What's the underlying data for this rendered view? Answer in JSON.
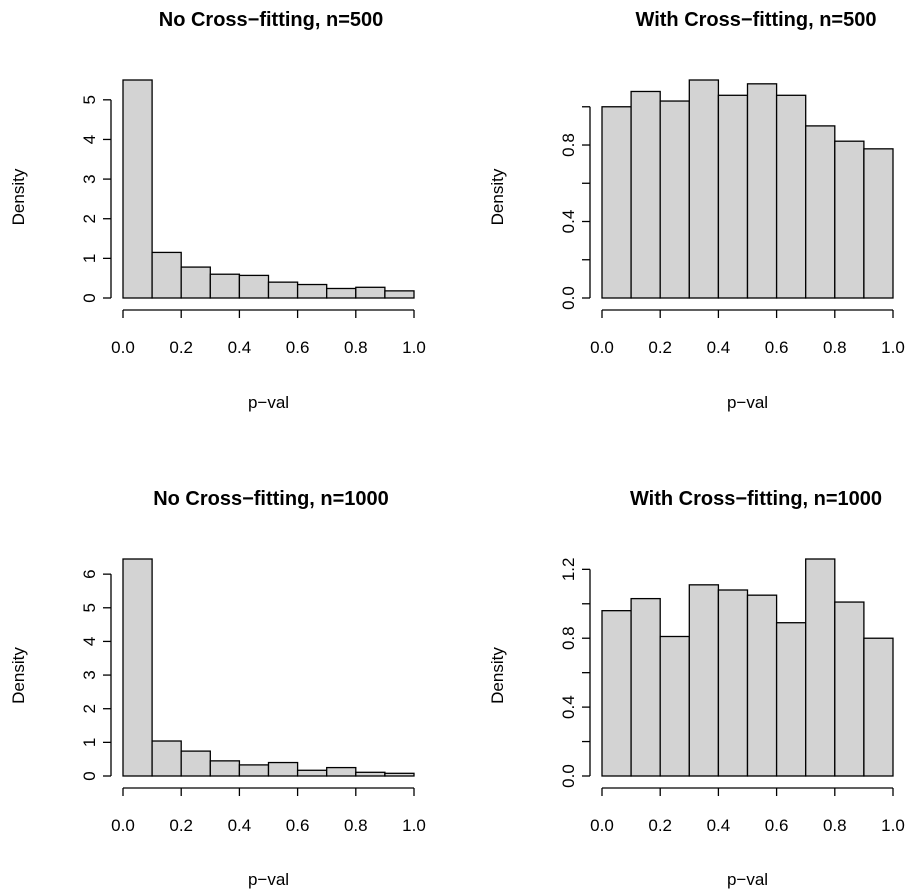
{
  "chart_data": [
    {
      "type": "bar",
      "title": "No Cross−fitting, n=500",
      "xlabel": "p−val",
      "ylabel": "Density",
      "bin_edges": [
        0.0,
        0.1,
        0.2,
        0.3,
        0.4,
        0.5,
        0.6,
        0.7,
        0.8,
        0.9,
        1.0
      ],
      "values": [
        5.5,
        1.15,
        0.78,
        0.6,
        0.57,
        0.4,
        0.34,
        0.24,
        0.27,
        0.18
      ],
      "xlim": [
        0,
        1
      ],
      "ylim": [
        0,
        5.5
      ],
      "x_ticks": [
        0.0,
        0.2,
        0.4,
        0.6,
        0.8,
        1.0
      ],
      "x_tick_labels": [
        "0.0",
        "0.2",
        "0.4",
        "0.6",
        "0.8",
        "1.0"
      ],
      "y_ticks": [
        0,
        1,
        2,
        3,
        4,
        5
      ],
      "y_tick_labels": [
        "0",
        "1",
        "2",
        "3",
        "4",
        "5"
      ],
      "bar_color": "#d3d3d3",
      "grid": false
    },
    {
      "type": "bar",
      "title": "With Cross−fitting, n=500",
      "xlabel": "p−val",
      "ylabel": "Density",
      "bin_edges": [
        0.0,
        0.1,
        0.2,
        0.3,
        0.4,
        0.5,
        0.6,
        0.7,
        0.8,
        0.9,
        1.0
      ],
      "values": [
        1.0,
        1.08,
        1.03,
        1.14,
        1.06,
        1.12,
        1.06,
        0.9,
        0.82,
        0.78
      ],
      "xlim": [
        0,
        1
      ],
      "ylim": [
        0,
        1.14
      ],
      "x_ticks": [
        0.0,
        0.2,
        0.4,
        0.6,
        0.8,
        1.0
      ],
      "x_tick_labels": [
        "0.0",
        "0.2",
        "0.4",
        "0.6",
        "0.8",
        "1.0"
      ],
      "y_ticks": [
        0.0,
        0.2,
        0.4,
        0.6,
        0.8,
        1.0
      ],
      "y_tick_labels": [
        "0.0",
        "",
        "0.4",
        "",
        "0.8",
        ""
      ],
      "bar_color": "#d3d3d3",
      "grid": false
    },
    {
      "type": "bar",
      "title": "No Cross−fitting, n=1000",
      "xlabel": "p−val",
      "ylabel": "Density",
      "bin_edges": [
        0.0,
        0.1,
        0.2,
        0.3,
        0.4,
        0.5,
        0.6,
        0.7,
        0.8,
        0.9,
        1.0
      ],
      "values": [
        6.45,
        1.04,
        0.74,
        0.45,
        0.33,
        0.4,
        0.17,
        0.25,
        0.11,
        0.08
      ],
      "xlim": [
        0,
        1
      ],
      "ylim": [
        0,
        6.45
      ],
      "x_ticks": [
        0.0,
        0.2,
        0.4,
        0.6,
        0.8,
        1.0
      ],
      "x_tick_labels": [
        "0.0",
        "0.2",
        "0.4",
        "0.6",
        "0.8",
        "1.0"
      ],
      "y_ticks": [
        0,
        1,
        2,
        3,
        4,
        5,
        6
      ],
      "y_tick_labels": [
        "0",
        "1",
        "2",
        "3",
        "4",
        "5",
        "6"
      ],
      "bar_color": "#d3d3d3",
      "grid": false
    },
    {
      "type": "bar",
      "title": "With Cross−fitting, n=1000",
      "xlabel": "p−val",
      "ylabel": "Density",
      "bin_edges": [
        0.0,
        0.1,
        0.2,
        0.3,
        0.4,
        0.5,
        0.6,
        0.7,
        0.8,
        0.9,
        1.0
      ],
      "values": [
        0.96,
        1.03,
        0.81,
        1.11,
        1.08,
        1.05,
        0.89,
        1.26,
        1.01,
        0.8
      ],
      "xlim": [
        0,
        1
      ],
      "ylim": [
        0,
        1.26
      ],
      "x_ticks": [
        0.0,
        0.2,
        0.4,
        0.6,
        0.8,
        1.0
      ],
      "x_tick_labels": [
        "0.0",
        "0.2",
        "0.4",
        "0.6",
        "0.8",
        "1.0"
      ],
      "y_ticks": [
        0.0,
        0.2,
        0.4,
        0.6,
        0.8,
        1.0,
        1.2
      ],
      "y_tick_labels": [
        "0.0",
        "",
        "0.4",
        "",
        "0.8",
        "",
        "1.2"
      ],
      "bar_color": "#d3d3d3",
      "grid": false
    }
  ]
}
